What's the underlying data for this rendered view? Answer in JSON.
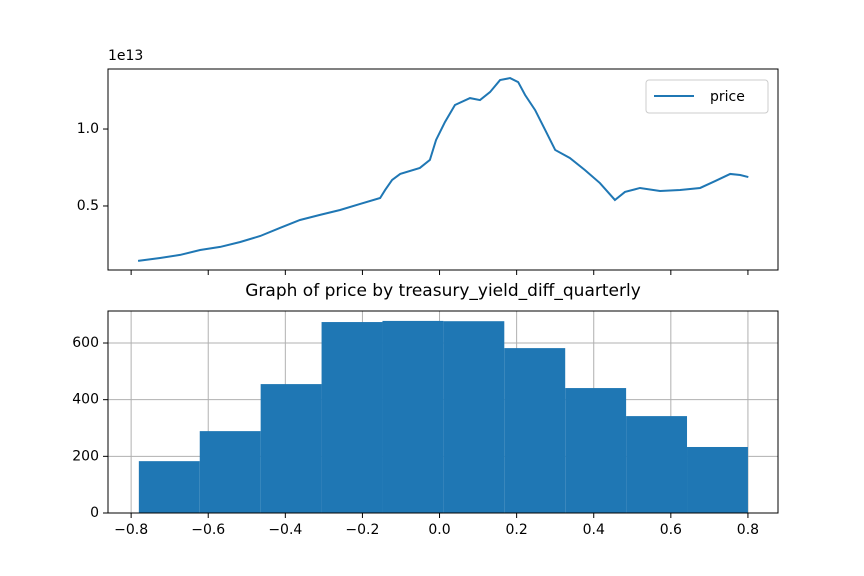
{
  "chart_data": [
    {
      "type": "line",
      "offset_label": "1e13",
      "x": [
        -0.782,
        -0.725,
        -0.673,
        -0.621,
        -0.569,
        -0.517,
        -0.465,
        -0.414,
        -0.362,
        -0.31,
        -0.258,
        -0.206,
        -0.154,
        -0.141,
        -0.123,
        -0.102,
        -0.051,
        -0.025,
        -0.009,
        0.014,
        0.04,
        0.079,
        0.105,
        0.131,
        0.157,
        0.183,
        0.204,
        0.222,
        0.248,
        0.274,
        0.3,
        0.338,
        0.377,
        0.416,
        0.455,
        0.481,
        0.52,
        0.572,
        0.624,
        0.676,
        0.715,
        0.754,
        0.78,
        0.801
      ],
      "series": [
        {
          "name": "price",
          "color": "#1f77b4",
          "values": [
            0.143,
            0.162,
            0.182,
            0.214,
            0.234,
            0.266,
            0.305,
            0.357,
            0.409,
            0.442,
            0.474,
            0.513,
            0.552,
            0.604,
            0.669,
            0.708,
            0.747,
            0.799,
            0.929,
            1.045,
            1.156,
            1.201,
            1.188,
            1.24,
            1.318,
            1.331,
            1.305,
            1.221,
            1.123,
            0.994,
            0.864,
            0.812,
            0.734,
            0.649,
            0.539,
            0.591,
            0.617,
            0.597,
            0.604,
            0.617,
            0.662,
            0.708,
            0.701,
            0.688
          ]
        }
      ],
      "xlim": [
        -0.86,
        0.878
      ],
      "xticks": [
        -0.8,
        -0.6,
        -0.4,
        -0.2,
        0,
        0.2,
        0.4,
        0.6,
        0.8
      ],
      "x_tick_labels_visible": false,
      "ylim": [
        0.084,
        1.39
      ],
      "yticks": [
        0.5,
        {
          "value": 1,
          "label": "1.0"
        }
      ],
      "grid": false,
      "legend": "upper right"
    },
    {
      "type": "histogram",
      "title": "Graph of price by treasury_yield_diff_quarterly",
      "bins": [
        -0.78,
        -0.622,
        -0.464,
        -0.306,
        -0.148,
        0.01,
        0.168,
        0.326,
        0.484,
        0.642,
        0.8
      ],
      "counts": [
        183,
        289,
        455,
        674,
        678,
        677,
        582,
        441,
        342,
        233
      ],
      "color": "#1f77b4",
      "xlim": [
        -0.86,
        0.878
      ],
      "xticks": [
        {
          "value": -0.8,
          "label": "−0.8"
        },
        {
          "value": -0.6,
          "label": "−0.6"
        },
        {
          "value": -0.4,
          "label": "−0.4"
        },
        {
          "value": -0.2,
          "label": "−0.2"
        },
        {
          "value": 0,
          "label": "0.0"
        },
        0.2,
        0.4,
        0.6,
        0.8
      ],
      "x_tick_labels_visible": true,
      "ylim": [
        0,
        713
      ],
      "yticks": [
        0,
        200,
        400,
        600
      ],
      "grid": true
    }
  ]
}
